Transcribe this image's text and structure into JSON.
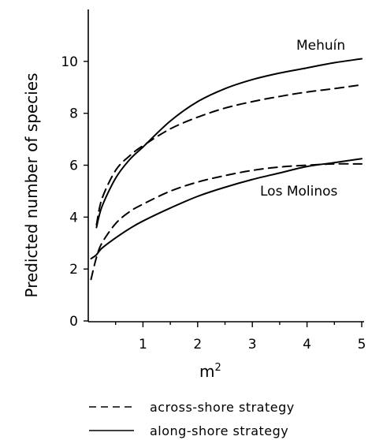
{
  "chart_data": {
    "type": "line",
    "xlabel": "m",
    "xlabel_sup": "2",
    "ylabel": "Predicted number of species",
    "xlim": [
      0,
      5
    ],
    "ylim": [
      0,
      12
    ],
    "x_ticks": [
      1,
      2,
      3,
      4,
      5
    ],
    "y_ticks": [
      0,
      2,
      4,
      6,
      8,
      10
    ],
    "x_minor_ticks": [
      0.5,
      1.5,
      2.5,
      3.5,
      4.5
    ],
    "grid": false,
    "series_labels": {
      "mehuin": "Mehuín",
      "los_molinos": "Los Molinos"
    },
    "series": [
      {
        "site": "mehuin",
        "style": "dashed",
        "points": [
          [
            0.15,
            3.7
          ],
          [
            0.25,
            4.7
          ],
          [
            0.5,
            5.8
          ],
          [
            0.75,
            6.35
          ],
          [
            1,
            6.75
          ],
          [
            1.5,
            7.4
          ],
          [
            2,
            7.85
          ],
          [
            2.5,
            8.2
          ],
          [
            3,
            8.45
          ],
          [
            3.5,
            8.65
          ],
          [
            4,
            8.82
          ],
          [
            4.5,
            8.95
          ],
          [
            5,
            9.1
          ]
        ]
      },
      {
        "site": "mehuin",
        "style": "solid",
        "points": [
          [
            0.15,
            3.6
          ],
          [
            0.25,
            4.4
          ],
          [
            0.5,
            5.5
          ],
          [
            0.75,
            6.2
          ],
          [
            1,
            6.7
          ],
          [
            1.5,
            7.7
          ],
          [
            2,
            8.45
          ],
          [
            2.5,
            8.95
          ],
          [
            3,
            9.3
          ],
          [
            3.5,
            9.55
          ],
          [
            4,
            9.75
          ],
          [
            4.5,
            9.95
          ],
          [
            5,
            10.1
          ]
        ]
      },
      {
        "site": "los_molinos",
        "style": "dashed",
        "points": [
          [
            0.05,
            1.6
          ],
          [
            0.15,
            2.45
          ],
          [
            0.25,
            3.0
          ],
          [
            0.5,
            3.75
          ],
          [
            0.75,
            4.2
          ],
          [
            1,
            4.5
          ],
          [
            1.5,
            5.0
          ],
          [
            2,
            5.35
          ],
          [
            2.5,
            5.6
          ],
          [
            3,
            5.8
          ],
          [
            3.5,
            5.93
          ],
          [
            4,
            6.0
          ],
          [
            4.5,
            6.05
          ],
          [
            5,
            6.05
          ]
        ]
      },
      {
        "site": "los_molinos",
        "style": "solid",
        "points": [
          [
            0.05,
            2.4
          ],
          [
            0.15,
            2.55
          ],
          [
            0.25,
            2.8
          ],
          [
            0.5,
            3.2
          ],
          [
            0.75,
            3.55
          ],
          [
            1,
            3.85
          ],
          [
            1.5,
            4.35
          ],
          [
            2,
            4.8
          ],
          [
            2.5,
            5.15
          ],
          [
            3,
            5.45
          ],
          [
            3.5,
            5.7
          ],
          [
            4,
            5.95
          ],
          [
            4.5,
            6.1
          ],
          [
            5,
            6.25
          ]
        ]
      }
    ],
    "legend": [
      {
        "style": "dashed",
        "label": "across-shore strategy"
      },
      {
        "style": "solid",
        "label": "along-shore strategy"
      }
    ]
  }
}
